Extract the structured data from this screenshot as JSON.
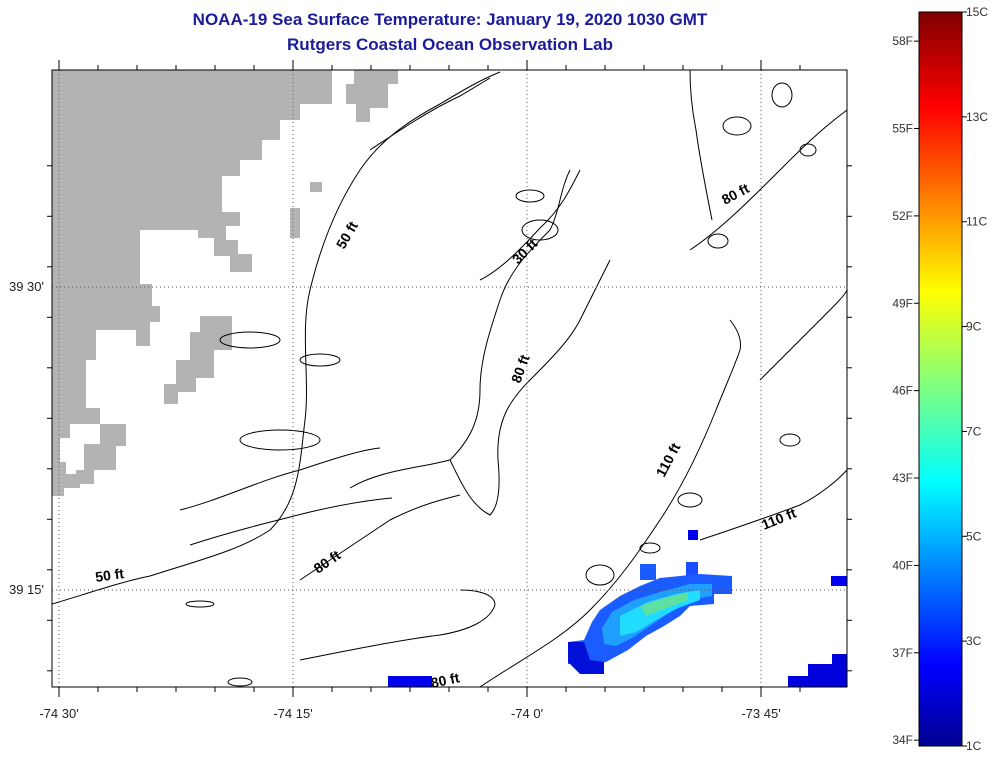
{
  "title": "NOAA-19 Sea Surface Temperature:  January 19, 2020 1030 GMT",
  "subtitle": "Rutgers Coastal Ocean Observation Lab",
  "map": {
    "lon_ticks": [
      {
        "value": -74.5,
        "label": "-74 30'"
      },
      {
        "value": -74.25,
        "label": "-74 15'"
      },
      {
        "value": -74.0,
        "label": "-74 0'"
      },
      {
        "value": -73.75,
        "label": "-73 45'"
      }
    ],
    "lat_ticks": [
      {
        "value": 39.5,
        "label": "39 30'"
      },
      {
        "value": 39.25,
        "label": "39 15'"
      }
    ],
    "contour_labels": [
      "50 ft",
      "30 ft",
      "80 ft",
      "80 ft",
      "50 ft",
      "80 ft",
      "110 ft",
      "110 ft",
      "80 ft"
    ]
  },
  "colorbar": {
    "celsius": [
      "15C",
      "13C",
      "11C",
      "9C",
      "7C",
      "5C",
      "3C",
      "1C"
    ],
    "fahrenheit": [
      "58F",
      "55F",
      "52F",
      "49F",
      "46F",
      "43F",
      "40F",
      "37F",
      "34F"
    ],
    "range_c": [
      1,
      15
    ]
  },
  "colors": {
    "land": "#b3b3b3",
    "title": "#1c1c9a"
  }
}
